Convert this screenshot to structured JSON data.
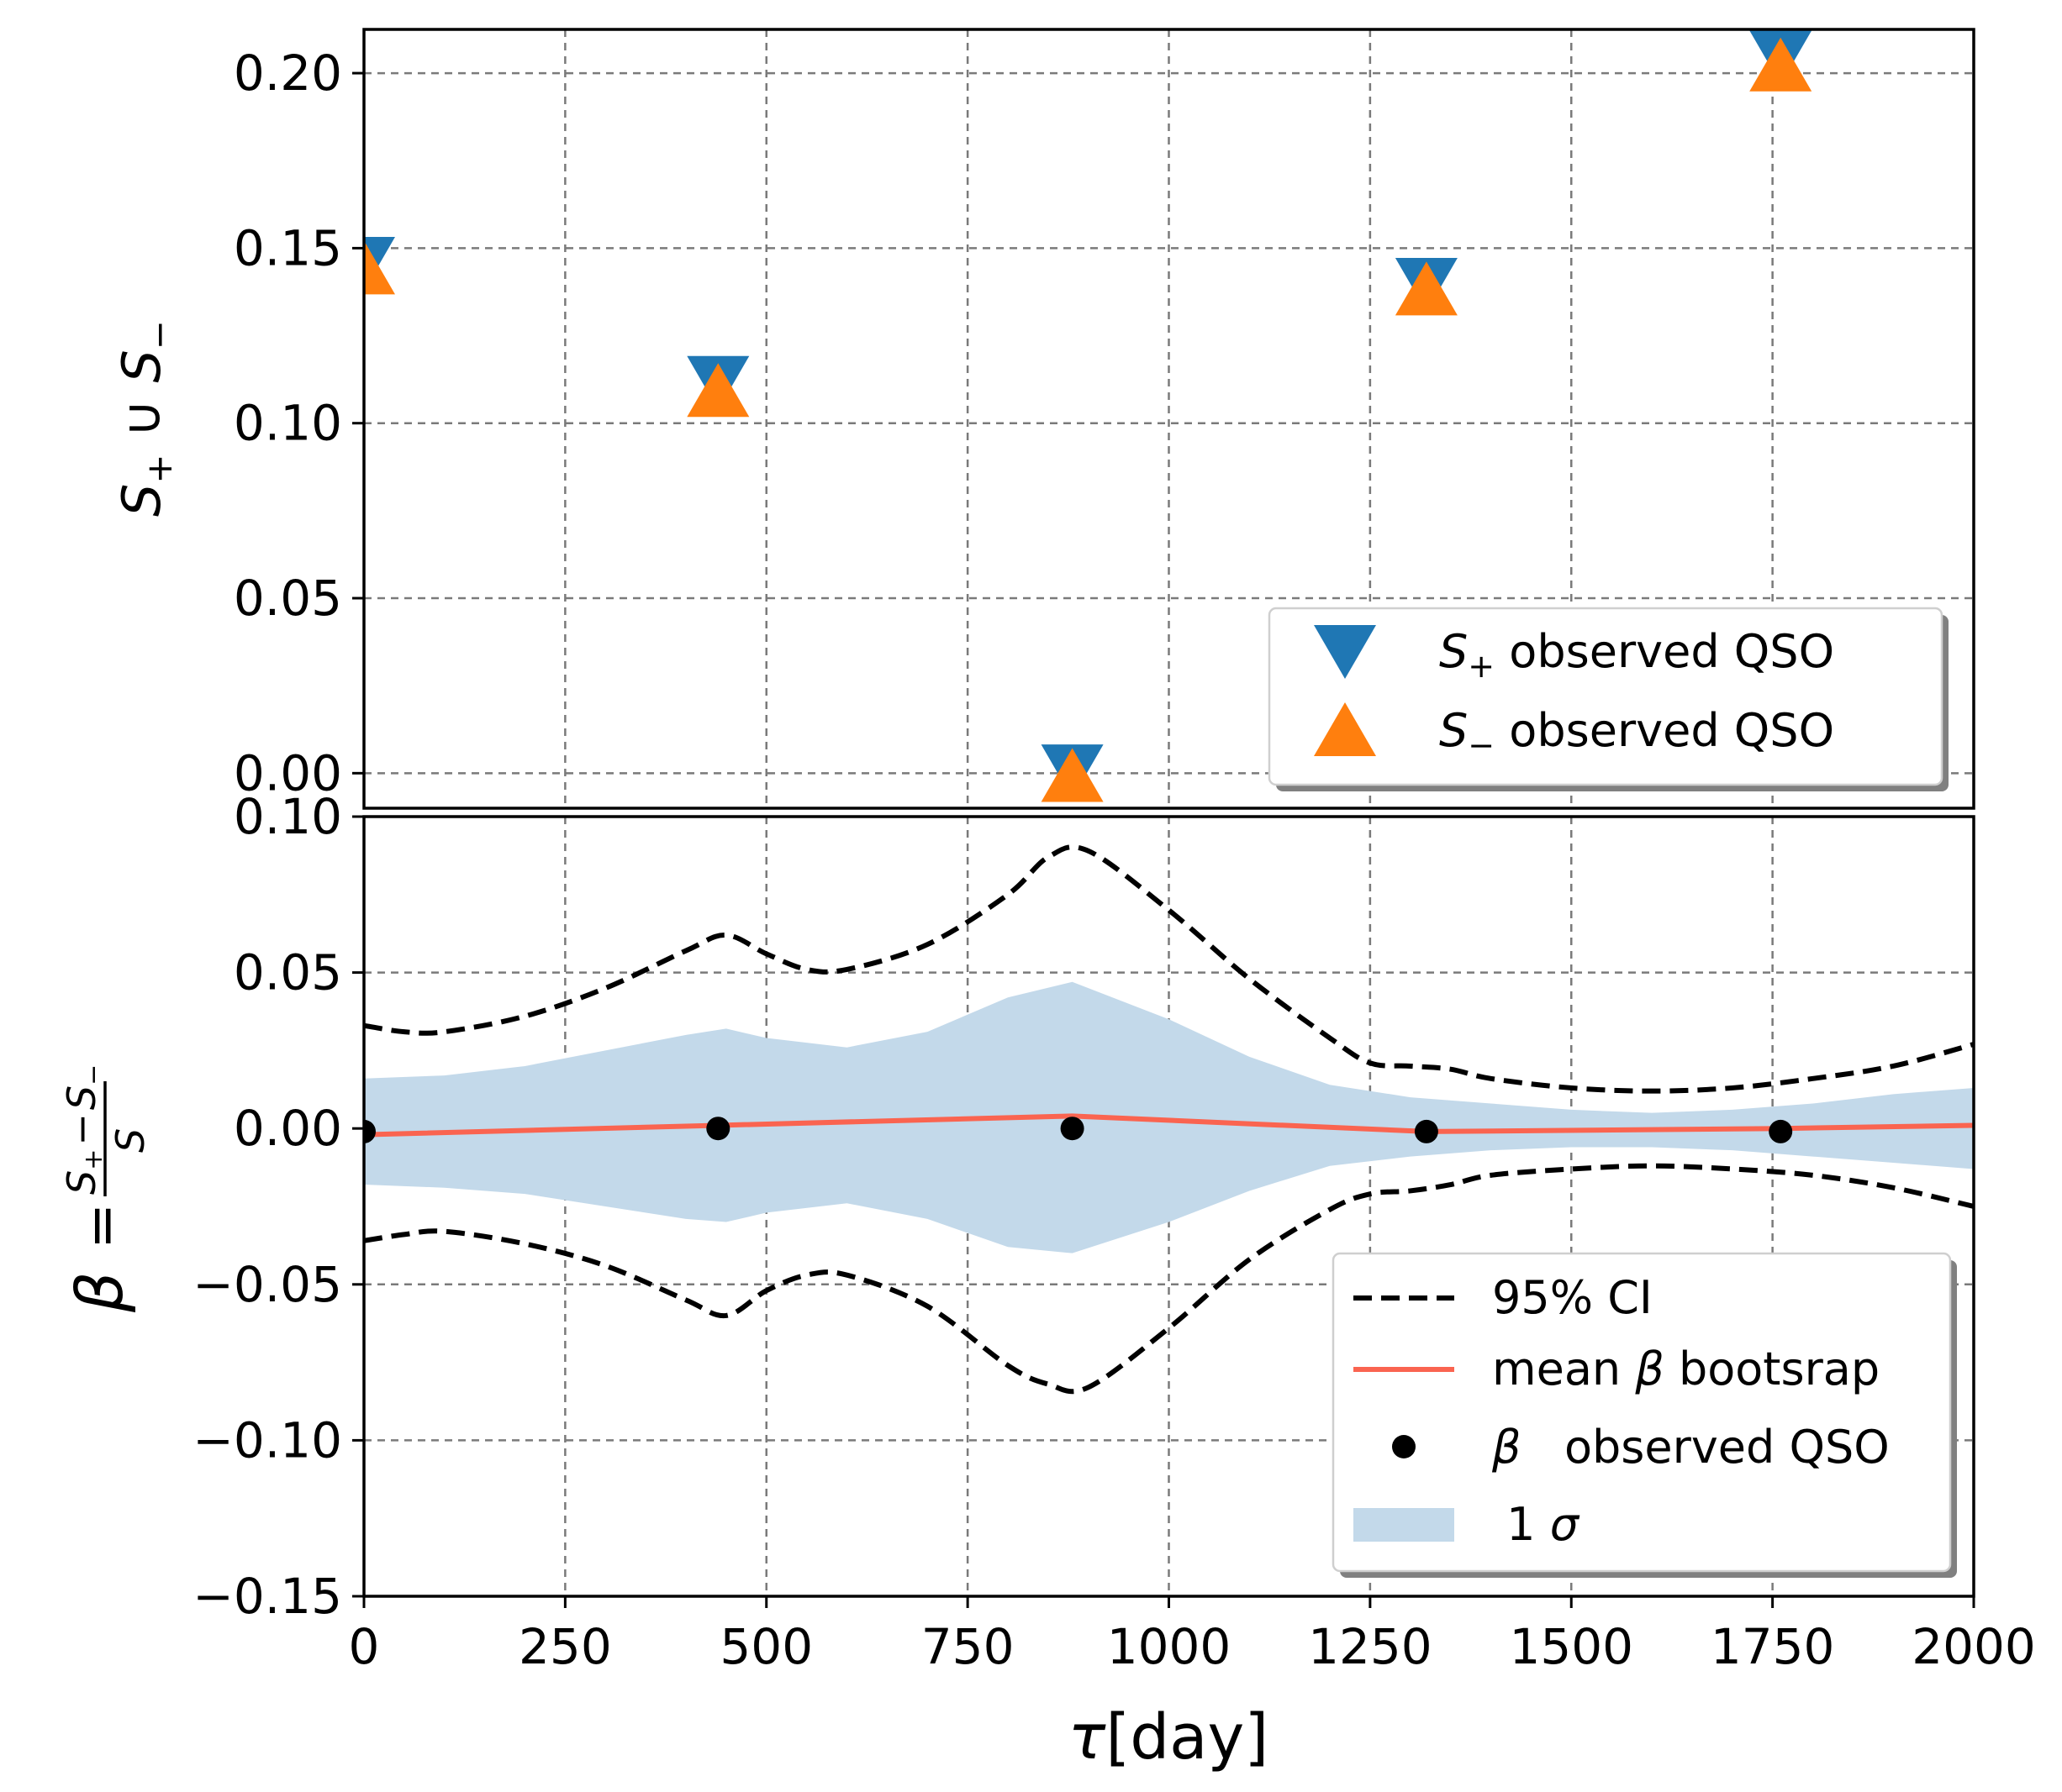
{
  "chart_data": [
    {
      "type": "scatter",
      "panel": "top",
      "xlabel": "",
      "ylabel": "S+ ∪ S−",
      "xlim": [
        0,
        2000
      ],
      "ylim": [
        -0.01,
        0.2125
      ],
      "grid": true,
      "yticks": [
        0.0,
        0.05,
        0.1,
        0.15,
        0.2
      ],
      "ytick_labels": [
        "0.00",
        "0.05",
        "0.10",
        "0.15",
        "0.20"
      ],
      "series": [
        {
          "name": "S+ observed QSO",
          "marker": "triangle-down",
          "color": "#1f77b4",
          "x": [
            0,
            440,
            880,
            1320,
            1760
          ],
          "values": [
            0.146,
            0.112,
            0.001,
            0.14,
            0.205
          ]
        },
        {
          "name": "S− observed QSO",
          "marker": "triangle-up",
          "color": "#ff7f0e",
          "x": [
            0,
            440,
            880,
            1320,
            1760
          ],
          "values": [
            0.144,
            0.109,
            -0.001,
            0.138,
            0.202
          ]
        }
      ],
      "legend": {
        "position": "lower-right",
        "entries": [
          {
            "sym": "S",
            "sub": "+",
            "text": " observed QSO"
          },
          {
            "sym": "S",
            "sub": "−",
            "text": " observed QSO"
          }
        ]
      }
    },
    {
      "type": "line",
      "panel": "bottom",
      "xlabel_sym": "τ",
      "xlabel_text": "[day]",
      "ylabel": "β = (S+ − S−)/S",
      "ylabel_parts": {
        "beta": "β",
        "eq": "=",
        "num_s1": "S",
        "num_sub1": "+",
        "num_minus": "−",
        "num_s2": "S",
        "num_sub2": "−",
        "den": "S"
      },
      "xlim": [
        0,
        2000
      ],
      "ylim": [
        -0.15,
        0.1
      ],
      "grid": true,
      "xticks": [
        0,
        250,
        500,
        750,
        1000,
        1250,
        1500,
        1750,
        2000
      ],
      "xtick_labels": [
        "0",
        "250",
        "500",
        "750",
        "1000",
        "1250",
        "1500",
        "1750",
        "2000"
      ],
      "yticks": [
        -0.15,
        -0.1,
        -0.05,
        0.0,
        0.05,
        0.1
      ],
      "ytick_labels": [
        "−0.15",
        "−0.10",
        "−0.05",
        "0.00",
        "0.05",
        "0.10"
      ],
      "ci_upper": {
        "x": [
          0,
          50,
          100,
          200,
          300,
          400,
          450,
          500,
          550,
          600,
          700,
          800,
          850,
          900,
          1000,
          1100,
          1200,
          1250,
          1300,
          1350,
          1400,
          1500,
          1600,
          1700,
          1800,
          1900,
          2000
        ],
        "values": [
          0.033,
          0.031,
          0.031,
          0.036,
          0.045,
          0.057,
          0.062,
          0.056,
          0.051,
          0.051,
          0.059,
          0.075,
          0.087,
          0.089,
          0.07,
          0.048,
          0.029,
          0.021,
          0.02,
          0.019,
          0.016,
          0.013,
          0.012,
          0.013,
          0.016,
          0.02,
          0.027
        ]
      },
      "ci_lower": {
        "x": [
          0,
          50,
          100,
          200,
          300,
          400,
          450,
          500,
          550,
          600,
          700,
          800,
          850,
          900,
          1000,
          1100,
          1200,
          1250,
          1300,
          1350,
          1400,
          1500,
          1600,
          1700,
          1800,
          1900,
          2000
        ],
        "values": [
          -0.036,
          -0.034,
          -0.033,
          -0.037,
          -0.044,
          -0.055,
          -0.06,
          -0.052,
          -0.047,
          -0.047,
          -0.057,
          -0.076,
          -0.082,
          -0.083,
          -0.064,
          -0.042,
          -0.026,
          -0.021,
          -0.02,
          -0.018,
          -0.015,
          -0.013,
          -0.012,
          -0.013,
          -0.015,
          -0.019,
          -0.025
        ]
      },
      "sigma_upper": {
        "x": [
          0,
          100,
          200,
          300,
          400,
          450,
          500,
          600,
          700,
          800,
          880,
          1000,
          1100,
          1200,
          1300,
          1400,
          1500,
          1600,
          1700,
          1800,
          1900,
          2000
        ],
        "values": [
          0.016,
          0.017,
          0.02,
          0.025,
          0.03,
          0.032,
          0.029,
          0.026,
          0.031,
          0.042,
          0.047,
          0.035,
          0.023,
          0.014,
          0.01,
          0.008,
          0.006,
          0.005,
          0.006,
          0.008,
          0.011,
          0.013
        ]
      },
      "sigma_lower": {
        "x": [
          0,
          100,
          200,
          300,
          400,
          450,
          500,
          600,
          700,
          800,
          880,
          1000,
          1100,
          1200,
          1300,
          1400,
          1500,
          1600,
          1700,
          1800,
          1900,
          2000
        ],
        "values": [
          -0.018,
          -0.019,
          -0.021,
          -0.025,
          -0.029,
          -0.03,
          -0.027,
          -0.024,
          -0.029,
          -0.038,
          -0.04,
          -0.03,
          -0.02,
          -0.012,
          -0.009,
          -0.007,
          -0.006,
          -0.006,
          -0.007,
          -0.009,
          -0.011,
          -0.013
        ]
      },
      "mean_beta": {
        "x": [
          0,
          440,
          880,
          1320,
          1760,
          2000
        ],
        "values": [
          -0.002,
          0.001,
          0.004,
          -0.001,
          0.0,
          0.001
        ]
      },
      "observed_beta": {
        "x": [
          0,
          440,
          880,
          1320,
          1760
        ],
        "values": [
          -0.001,
          0.0,
          0.0,
          -0.001,
          -0.001
        ]
      },
      "legend": {
        "position": "lower-right",
        "entries": [
          {
            "pre": "",
            "sym": "",
            "text": "95% CI"
          },
          {
            "pre": "mean ",
            "sym": "β",
            "text": " bootsrap"
          },
          {
            "pre": "",
            "sym": "β",
            "text": "   observed QSO"
          },
          {
            "pre": " 1 ",
            "sym": "σ",
            "text": ""
          }
        ]
      },
      "colors": {
        "ci": "#000000",
        "mean": "#fa6450",
        "obs": "#000000",
        "sigma": "#c3d9ea"
      }
    }
  ]
}
